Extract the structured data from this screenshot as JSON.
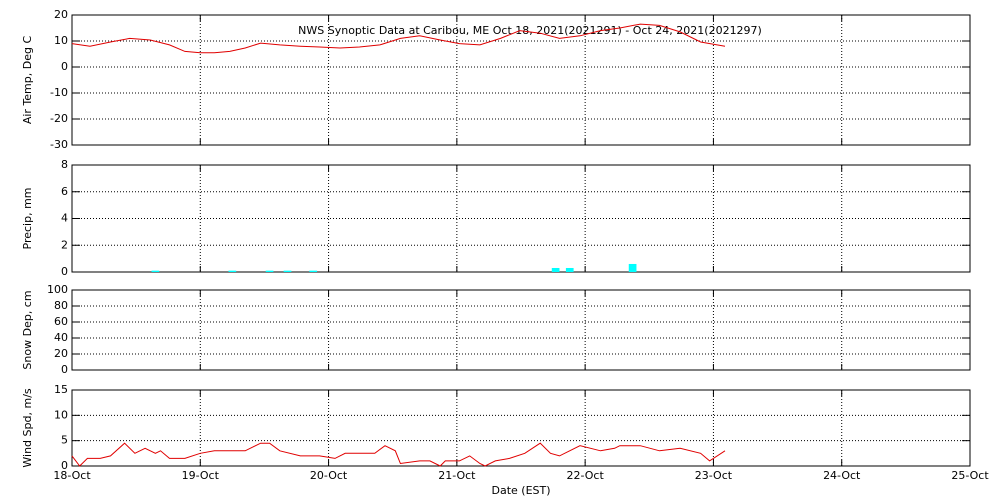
{
  "chart_data": [
    {
      "type": "line",
      "title": "NWS Synoptic Data at Caribou, ME   Oct 18, 2021(2021291) - Oct 24, 2021(2021297)",
      "ylabel": "Air Temp, Deg C",
      "ylim": [
        -30,
        20
      ],
      "yticks": [
        -30,
        -20,
        -10,
        0,
        10,
        20
      ],
      "grid": true,
      "series": [
        {
          "color": "#e00000",
          "x": [
            0,
            0.14,
            0.3,
            0.45,
            0.61,
            0.76,
            0.88,
            1.0,
            1.11,
            1.23,
            1.35,
            1.47,
            1.62,
            1.78,
            1.93,
            2.09,
            2.24,
            2.4,
            2.56,
            2.71,
            2.87,
            3.02,
            3.18,
            3.34,
            3.49,
            3.65,
            3.8,
            3.96,
            4.12,
            4.27,
            4.43,
            4.58,
            4.74,
            4.9,
            5.09
          ],
          "values": [
            9,
            8,
            9.6,
            11,
            10.4,
            8.5,
            6,
            5.5,
            5.5,
            6,
            7.3,
            9.2,
            8.5,
            8,
            7.7,
            7.3,
            7.7,
            8.5,
            11,
            12,
            10.4,
            9,
            8.5,
            11,
            14,
            13,
            11,
            12,
            14,
            15,
            16.5,
            16,
            13.5,
            9.6,
            8
          ]
        }
      ]
    },
    {
      "type": "bar",
      "ylabel": "Precip, mm",
      "ylim": [
        0,
        8
      ],
      "yticks": [
        0,
        2,
        4,
        6,
        8
      ],
      "grid": true,
      "color": "#00ffff",
      "x": [
        0.65,
        1.25,
        1.54,
        1.68,
        1.88,
        3.77,
        3.88,
        4.37
      ],
      "values": [
        0.1,
        0.1,
        0.1,
        0.1,
        0.1,
        0.3,
        0.3,
        0.6
      ]
    },
    {
      "type": "line",
      "ylabel": "Snow Dep, cm",
      "ylim": [
        0,
        100
      ],
      "yticks": [
        0,
        20,
        40,
        60,
        80,
        100
      ],
      "grid": true,
      "series": []
    },
    {
      "type": "line",
      "ylabel": "Wind Spd, m/s",
      "xlabel": "Date (EST)",
      "ylim": [
        0,
        15
      ],
      "yticks": [
        0,
        5,
        10,
        15
      ],
      "grid": true,
      "xlim": [
        0,
        7
      ],
      "xticks": [
        {
          "value": 0,
          "label": "18-Oct"
        },
        {
          "value": 1,
          "label": "19-Oct"
        },
        {
          "value": 2,
          "label": "20-Oct"
        },
        {
          "value": 3,
          "label": "21-Oct"
        },
        {
          "value": 4,
          "label": "22-Oct"
        },
        {
          "value": 5,
          "label": "23-Oct"
        },
        {
          "value": 6,
          "label": "24-Oct"
        },
        {
          "value": 7,
          "label": "25-Oct"
        }
      ],
      "series": [
        {
          "color": "#e00000",
          "x": [
            0,
            0.06,
            0.12,
            0.22,
            0.3,
            0.41,
            0.49,
            0.57,
            0.65,
            0.69,
            0.76,
            0.88,
            1.0,
            1.11,
            1.23,
            1.35,
            1.47,
            1.54,
            1.62,
            1.78,
            1.93,
            2.05,
            2.13,
            2.24,
            2.36,
            2.44,
            2.52,
            2.56,
            2.71,
            2.79,
            2.87,
            2.91,
            3.02,
            3.1,
            3.18,
            3.22,
            3.3,
            3.41,
            3.53,
            3.65,
            3.73,
            3.8,
            3.88,
            3.96,
            4.12,
            4.23,
            4.27,
            4.43,
            4.58,
            4.74,
            4.9,
            4.97,
            5.09
          ],
          "values": [
            2,
            0,
            1.5,
            1.5,
            2,
            4.5,
            2.5,
            3.5,
            2.5,
            3,
            1.5,
            1.5,
            2.5,
            3,
            3,
            3,
            4.5,
            4.5,
            3,
            2,
            2,
            1.5,
            2.5,
            2.5,
            2.5,
            4,
            3,
            0.5,
            1,
            1,
            0,
            1,
            1,
            2,
            0.5,
            0,
            1,
            1.5,
            2.5,
            4.5,
            2.5,
            2,
            3,
            4,
            3,
            3.5,
            4,
            4,
            3,
            3.5,
            2.5,
            1,
            3
          ]
        }
      ]
    }
  ]
}
